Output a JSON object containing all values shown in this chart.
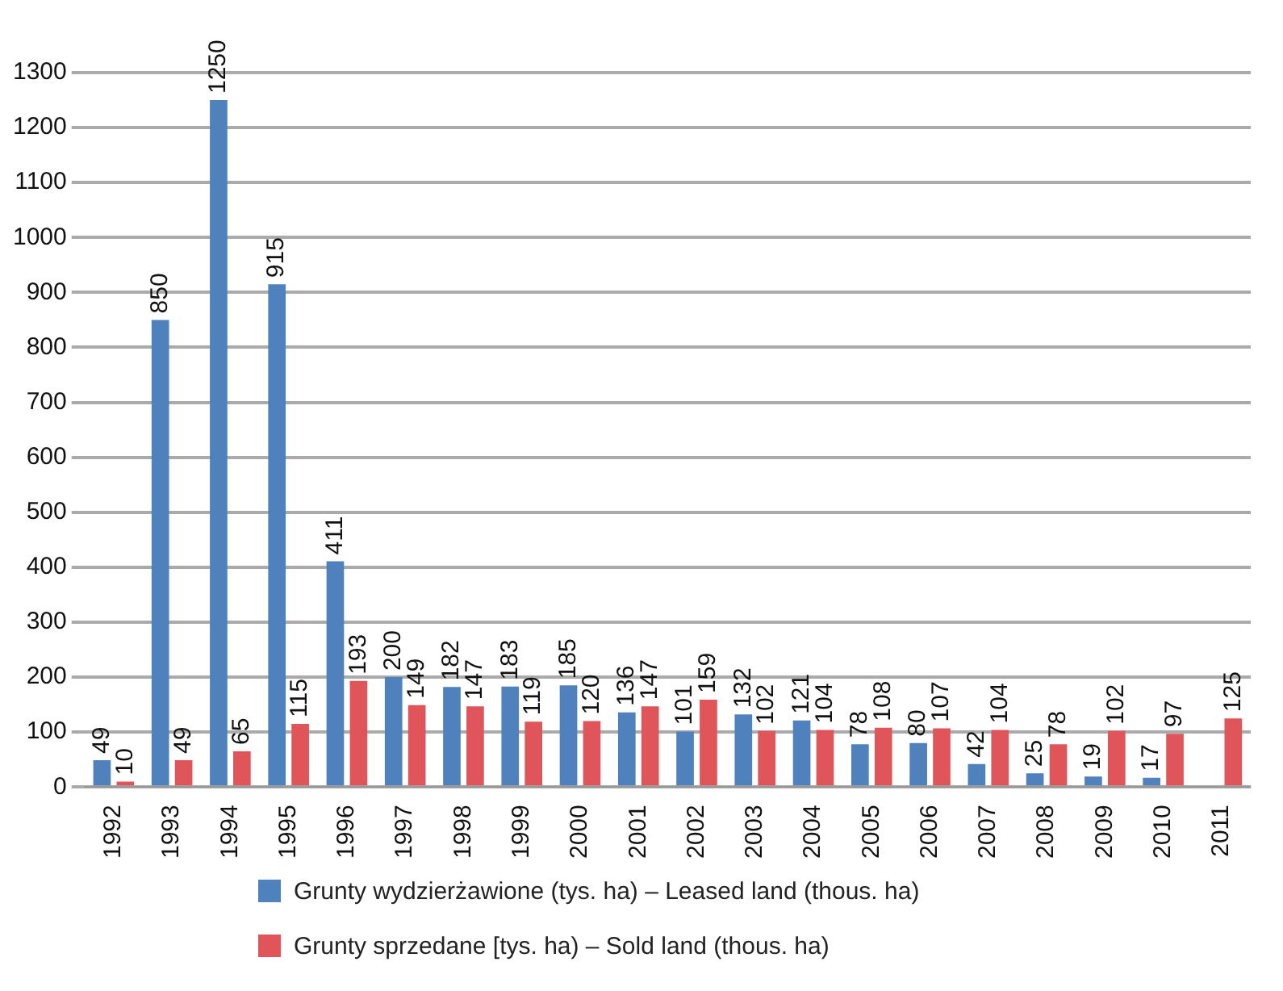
{
  "chart_data": {
    "type": "bar",
    "categories": [
      "1992",
      "1993",
      "1994",
      "1995",
      "1996",
      "1997",
      "1998",
      "1999",
      "2000",
      "2001",
      "2002",
      "2003",
      "2004",
      "2005",
      "2006",
      "2007",
      "2008",
      "2009",
      "2010",
      "2011"
    ],
    "series": [
      {
        "name": "Grunty wydzierżawione (tys. ha) – Leased land (thous. ha)",
        "color": "#4f81bd",
        "values": [
          49,
          850,
          1250,
          915,
          411,
          200,
          182,
          183,
          185,
          136,
          101,
          132,
          121,
          78,
          80,
          42,
          25,
          19,
          17,
          null
        ]
      },
      {
        "name": "Grunty sprzedane [tys. ha) – Sold land (thous. ha)",
        "color": "#e0555a",
        "values": [
          10,
          49,
          65,
          115,
          193,
          149,
          147,
          119,
          120,
          147,
          159,
          102,
          104,
          108,
          107,
          104,
          78,
          102,
          97,
          125
        ]
      }
    ],
    "ylim": [
      0,
      1300
    ],
    "yticks": [
      0,
      100,
      200,
      300,
      400,
      500,
      600,
      700,
      800,
      900,
      1000,
      1100,
      1200,
      1300
    ],
    "grid": "y",
    "data_labels": true,
    "legend": "bottom"
  }
}
